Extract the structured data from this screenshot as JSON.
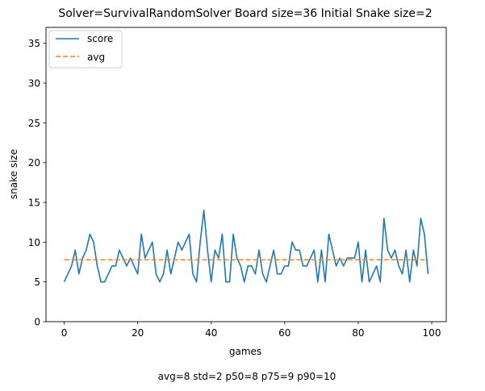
{
  "chart_data": {
    "type": "line",
    "title": "Solver=SurvivalRandomSolver   Board size=36   Initial Snake size=2",
    "xlabel": "games",
    "ylabel": "snake size",
    "xlim": [
      -4.95,
      103.95
    ],
    "ylim": [
      0,
      37
    ],
    "xticks": [
      0,
      20,
      40,
      60,
      80,
      100
    ],
    "yticks": [
      0,
      5,
      10,
      15,
      20,
      25,
      30,
      35
    ],
    "grid": false,
    "legend_position": "top-left",
    "stats_text": "avg=8   std=2   p50=8   p75=9   p90=10",
    "series": [
      {
        "name": "score",
        "style": "solid",
        "color": "#1f77b4",
        "x_start": 0,
        "values": [
          5,
          6,
          7,
          9,
          6,
          8,
          9,
          11,
          10,
          7,
          5,
          5,
          6,
          7,
          7,
          9,
          8,
          7,
          8,
          7,
          6,
          11,
          8,
          9,
          10,
          6,
          5,
          6,
          9,
          6,
          8,
          10,
          9,
          10,
          11,
          6,
          5,
          10,
          14,
          9,
          5,
          9,
          8,
          11,
          5,
          5,
          11,
          8,
          7,
          5,
          7,
          7,
          6,
          9,
          6,
          5,
          7,
          9,
          6,
          6,
          7,
          7,
          10,
          9,
          9,
          7,
          7,
          8,
          9,
          5,
          9,
          5,
          11,
          9,
          7,
          8,
          7,
          8,
          8,
          8,
          10,
          5,
          9,
          5,
          6,
          7,
          5,
          13,
          9,
          8,
          9,
          7,
          6,
          9,
          5,
          9,
          7,
          13,
          11,
          6
        ]
      },
      {
        "name": "avg",
        "style": "dashed",
        "color": "#ff7f0e",
        "x": [
          0,
          99
        ],
        "values": [
          7.78,
          7.78
        ]
      }
    ]
  }
}
